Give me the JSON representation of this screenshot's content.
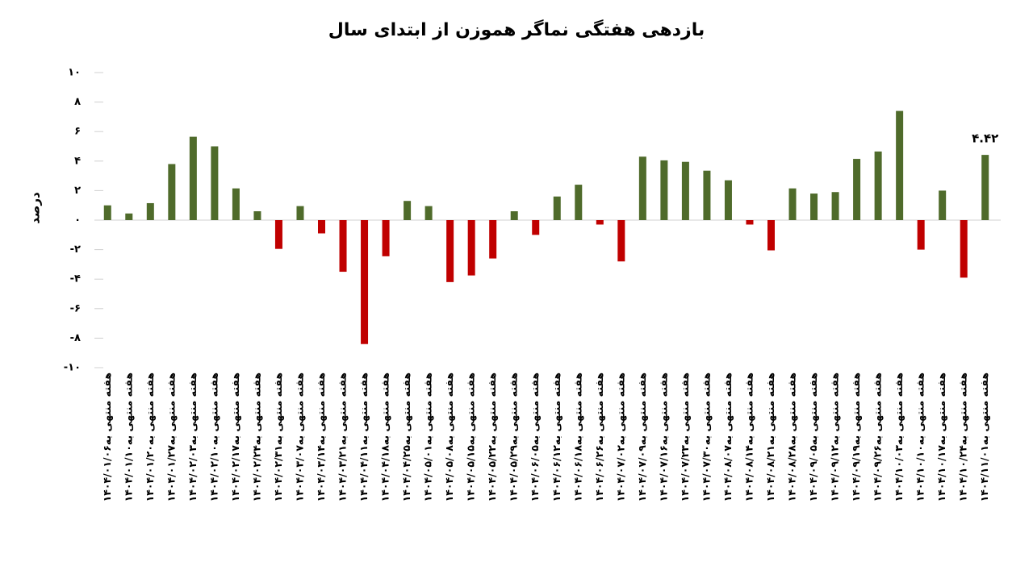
{
  "chart_data": {
    "type": "bar",
    "title": "بازدهی هفتگی نماگر هموزن از ابتدای سال",
    "y_label": "درصد",
    "categories": [
      "هفته منتهی به۱۴۰۴/۰۱/۰۶",
      "هفته منتهی به۱۴۰۴/۰۱/۱۰",
      "هفته منتهی به۱۴۰۴/۰۱/۲۰",
      "هفته منتهی به۱۴۰۴/۰۱/۲۷",
      "هفته منتهی به۱۴۰۴/۰۲/۰۳",
      "هفته منتهی به۱۴۰۴/۰۲/۱۰",
      "هفته منتهی به۱۴۰۴/۰۲/۱۷",
      "هفته منتهی به۱۴۰۴/۰۲/۲۴",
      "هفته منتهی به۱۴۰۴/۰۲/۳۱",
      "هفته منتهی به۱۴۰۴/۰۳/۰۷",
      "هفته منتهی به۱۴۰۴/۰۳/۱۴",
      "هفته منتهی به۱۴۰۴/۰۳/۲۱",
      "هفته منتهی به۱۴۰۴/۰۴/۱۱",
      "هفته منتهی به۱۴۰۴/۰۴/۱۸",
      "هفته منتهی به۱۴۰۴/۰۴/۲۵",
      "هفته منتهی به۱۴۰۴/۰۵/۰۱",
      "هفته منتهی به۱۴۰۴/۰۵/۰۸",
      "هفته منتهی به۱۴۰۴/۰۵/۱۵",
      "هفته منتهی به۱۴۰۴/۰۵/۲۲",
      "هفته منتهی به۱۴۰۴/۰۵/۲۹",
      "هفته منتهی به۱۴۰۴/۰۶/۰۵",
      "هفته منتهی به۱۴۰۴/۰۶/۱۲",
      "هفته منتهی به۱۴۰۴/۰۶/۱۸",
      "هفته منتهی به۱۴۰۴/۰۶/۲۶",
      "هفته منتهی به۱۴۰۴/۰۷/۰۲",
      "هفته منتهی به۱۴۰۴/۰۷/۰۹",
      "هفته منتهی به۱۴۰۴/۰۷/۱۶",
      "هفته منتهی به۱۴۰۴/۰۷/۲۳",
      "هفته منتهی به۱۴۰۴/۰۷/۳۰",
      "هفته منتهی به۱۴۰۴/۰۸/۰۷",
      "هفته منتهی به۱۴۰۴/۰۸/۱۴",
      "هفته منتهی به۱۴۰۴/۰۸/۲۱",
      "هفته منتهی به۱۴۰۴/۰۸/۲۸",
      "هفته منتهی به۱۴۰۴/۰۹/۰۵",
      "هفته منتهی به۱۴۰۴/۰۹/۱۲",
      "هفته منتهی به۱۴۰۴/۰۹/۱۹",
      "هفته منتهی به۱۴۰۴/۰۹/۲۶",
      "هفته منتهی به۱۴۰۴/۱۰/۰۳",
      "هفته منتهی به۱۴۰۴/۱۰/۱۰",
      "هفته منتهی به۱۴۰۴/۱۰/۱۷",
      "هفته منتهی به۱۴۰۴/۱۰/۲۴",
      "هفته منتهی به۱۴۰۴/۱۱/۰۱"
    ],
    "values": [
      1.0,
      0.45,
      1.15,
      3.8,
      5.65,
      5.0,
      2.15,
      0.6,
      -1.95,
      0.95,
      -0.9,
      -3.5,
      -8.4,
      -2.45,
      1.3,
      0.95,
      -4.2,
      -3.75,
      -2.6,
      0.6,
      -1.0,
      1.6,
      2.4,
      -0.3,
      -2.8,
      4.3,
      4.05,
      3.95,
      3.35,
      2.7,
      -0.3,
      -2.05,
      2.15,
      1.8,
      1.9,
      4.15,
      4.65,
      7.4,
      -2.0,
      2.0,
      -3.9,
      4.42
    ],
    "value_labels": [
      null,
      null,
      null,
      null,
      null,
      null,
      null,
      null,
      null,
      null,
      null,
      null,
      null,
      null,
      null,
      null,
      null,
      null,
      null,
      null,
      null,
      null,
      null,
      null,
      null,
      null,
      null,
      null,
      null,
      null,
      null,
      null,
      null,
      null,
      null,
      null,
      null,
      null,
      null,
      null,
      null,
      "۴.۴۲"
    ],
    "positive_color": "#4f6b2b",
    "negative_color": "#c00000",
    "ylim": [
      -10,
      10
    ],
    "yticks": [
      {
        "value": -10,
        "label": "-۱۰"
      },
      {
        "value": -8,
        "label": "-۸"
      },
      {
        "value": -6,
        "label": "-۶"
      },
      {
        "value": -4,
        "label": "-۴"
      },
      {
        "value": -2,
        "label": "-۲"
      },
      {
        "value": 0,
        "label": "۰"
      },
      {
        "value": 2,
        "label": "۲"
      },
      {
        "value": 4,
        "label": "۴"
      },
      {
        "value": 6,
        "label": "۶"
      },
      {
        "value": 8,
        "label": "۸"
      },
      {
        "value": 10,
        "label": "۱۰"
      }
    ],
    "grid": false
  }
}
